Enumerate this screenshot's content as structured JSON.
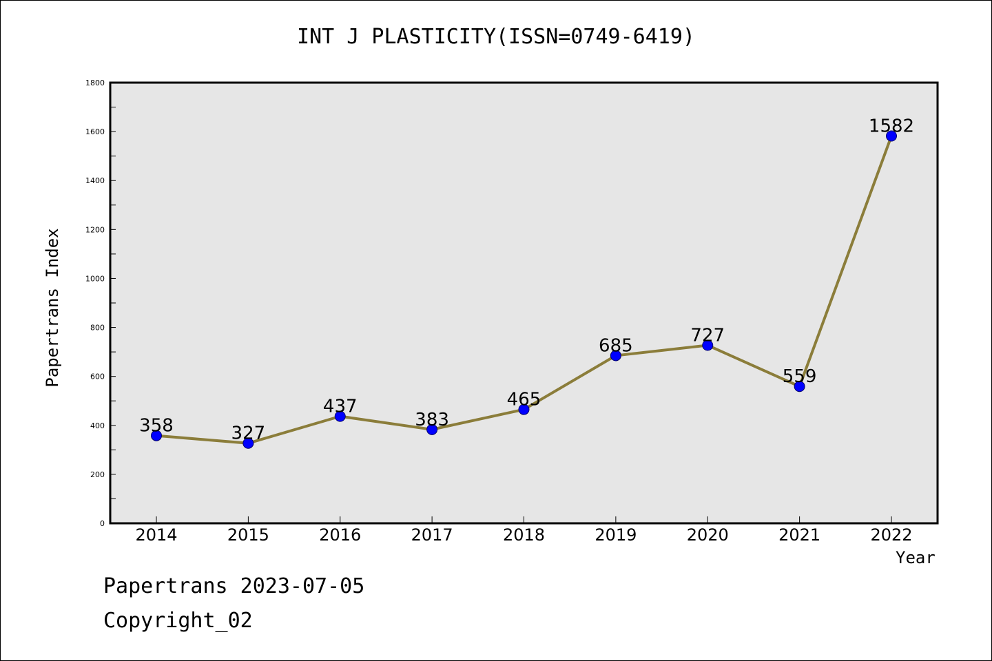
{
  "chart_data": {
    "type": "line",
    "title": "INT J PLASTICITY(ISSN=0749-6419)",
    "xlabel": "Year",
    "ylabel": "Papertrans Index",
    "categories": [
      "2014",
      "2015",
      "2016",
      "2017",
      "2018",
      "2019",
      "2020",
      "2021",
      "2022"
    ],
    "series": [
      {
        "values": [
          358,
          327,
          437,
          383,
          465,
          685,
          727,
          559,
          1582
        ]
      }
    ],
    "ylim": [
      0,
      1800
    ],
    "yticks": [
      "0",
      "200",
      "400",
      "600",
      "800",
      "1000",
      "1200",
      "1400",
      "1600",
      "1800"
    ],
    "grid": false,
    "line_color": "#8b7d3a",
    "marker_color": "#0000ff",
    "plot_background": "#e6e6e6"
  },
  "footer": {
    "line1": "Papertrans 2023-07-05",
    "line2": "Copyright_02"
  }
}
